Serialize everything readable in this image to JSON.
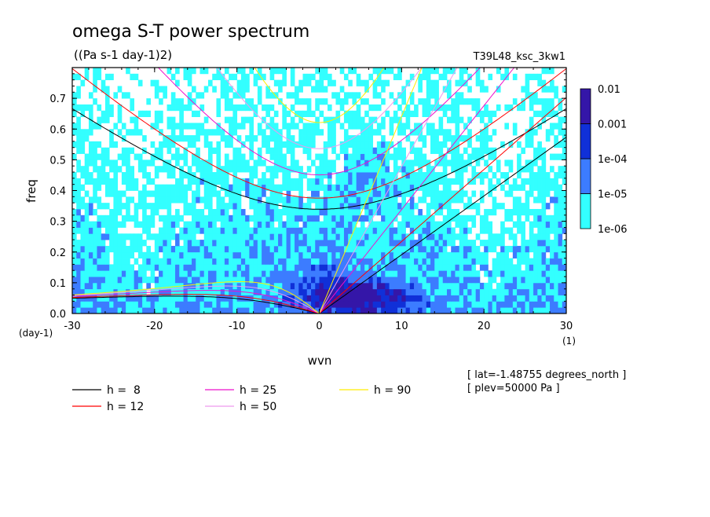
{
  "title": "omega S-T power spectrum",
  "units": "((Pa s-1 day-1)2)",
  "run_label": "T39L48_ksc_3kw1",
  "colorbar": {
    "labels": [
      "0.01",
      "0.001",
      "1e-04",
      "1e-05",
      "1e-06"
    ],
    "levels": [
      1e-06,
      1e-05,
      0.0001,
      0.001,
      0.01
    ],
    "colors": [
      "#33ffff",
      "#3c7cff",
      "#1030d8",
      "#3416a8"
    ]
  },
  "legend": [
    {
      "label": "h =  8",
      "color": "#000000"
    },
    {
      "label": "h = 12",
      "color": "#ff0000"
    },
    {
      "label": "h = 25",
      "color": "#ee11cc"
    },
    {
      "label": "h = 50",
      "color": "#ee99ee"
    },
    {
      "label": "h = 90",
      "color": "#ffee00"
    }
  ],
  "info_lines": [
    "[ lat=-1.48755 degrees_north ]",
    "[ plev=50000 Pa ]"
  ],
  "chart_data": {
    "type": "heatmap",
    "title": "omega S-T power spectrum",
    "subtitle": "((Pa s-1 day-1)2)",
    "xlabel": "wvn",
    "ylabel": "freq",
    "xunit": "(1)",
    "yunit": "(day-1)",
    "xlim": [
      -30,
      30
    ],
    "ylim": [
      0,
      0.8
    ],
    "x_ticks": [
      -30,
      -20,
      -10,
      0,
      10,
      20,
      30
    ],
    "x_tick_labels": [
      "-30",
      "-20",
      "-10",
      "0",
      "10",
      "20",
      "30"
    ],
    "y_ticks": [
      0.0,
      0.1,
      0.2,
      0.3,
      0.4,
      0.5,
      0.6,
      0.7
    ],
    "y_tick_labels": [
      "0.0",
      "0.1",
      "0.2",
      "0.3",
      "0.4",
      "0.5",
      "0.6",
      "0.7"
    ],
    "grid": false,
    "legend_position": "bottom",
    "dispersion_curves": [
      {
        "name": "h = 8",
        "h": 8,
        "color": "#000000"
      },
      {
        "name": "h = 12",
        "h": 12,
        "color": "#ff0000"
      },
      {
        "name": "h = 25",
        "h": 25,
        "color": "#ee11cc"
      },
      {
        "name": "h = 50",
        "h": 50,
        "color": "#ee99ee"
      },
      {
        "name": "h = 90",
        "h": 90,
        "color": "#ffee00"
      }
    ]
  }
}
